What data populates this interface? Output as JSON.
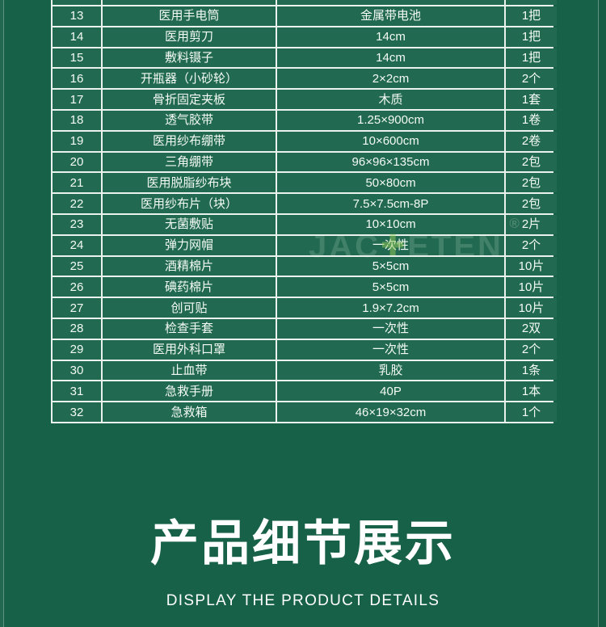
{
  "theme": {
    "background": "#186149",
    "cell_background": "#216950",
    "border_color": "#eaf2ee",
    "text_color": "#f4faf6",
    "watermark_cross_color": "#96cd5a"
  },
  "table": {
    "rows": [
      {
        "no": "13",
        "name": "医用手电筒",
        "spec": "金属带电池",
        "qty": "1把"
      },
      {
        "no": "14",
        "name": "医用剪刀",
        "spec": "14cm",
        "qty": "1把"
      },
      {
        "no": "15",
        "name": "敷料镊子",
        "spec": "14cm",
        "qty": "1把"
      },
      {
        "no": "16",
        "name": "开瓶器（小砂轮）",
        "spec": "2×2cm",
        "qty": "2个"
      },
      {
        "no": "17",
        "name": "骨折固定夹板",
        "spec": "木质",
        "qty": "1套"
      },
      {
        "no": "18",
        "name": "透气胶带",
        "spec": "1.25×900cm",
        "qty": "1卷"
      },
      {
        "no": "19",
        "name": "医用纱布绷带",
        "spec": "10×600cm",
        "qty": "2卷"
      },
      {
        "no": "20",
        "name": "三角绷带",
        "spec": "96×96×135cm",
        "qty": "2包"
      },
      {
        "no": "21",
        "name": "医用脱脂纱布块",
        "spec": "50×80cm",
        "qty": "2包"
      },
      {
        "no": "22",
        "name": "医用纱布片（块）",
        "spec": "7.5×7.5cm-8P",
        "qty": "2包"
      },
      {
        "no": "23",
        "name": "无菌敷贴",
        "spec": "10×10cm",
        "qty": "2片"
      },
      {
        "no": "24",
        "name": "弹力网帽",
        "spec": "一次性",
        "qty": "2个"
      },
      {
        "no": "25",
        "name": "酒精棉片",
        "spec": "5×5cm",
        "qty": "10片"
      },
      {
        "no": "26",
        "name": "碘药棉片",
        "spec": "5×5cm",
        "qty": "10片"
      },
      {
        "no": "27",
        "name": "创可贴",
        "spec": "1.9×7.2cm",
        "qty": "10片"
      },
      {
        "no": "28",
        "name": "检查手套",
        "spec": "一次性",
        "qty": "2双"
      },
      {
        "no": "29",
        "name": "医用外科口罩",
        "spec": "一次性",
        "qty": "2个"
      },
      {
        "no": "30",
        "name": "止血带",
        "spec": "乳胶",
        "qty": "1条"
      },
      {
        "no": "31",
        "name": "急救手册",
        "spec": "40P",
        "qty": "1本"
      },
      {
        "no": "32",
        "name": "急救箱",
        "spec": "46×19×32cm",
        "qty": "1个"
      }
    ]
  },
  "watermark": {
    "left": "JAC",
    "cross": "✚",
    "right": "ETEN",
    "reg": "®"
  },
  "heading": {
    "title": "产品细节展示",
    "subtitle": "DISPLAY THE PRODUCT DETAILS"
  }
}
